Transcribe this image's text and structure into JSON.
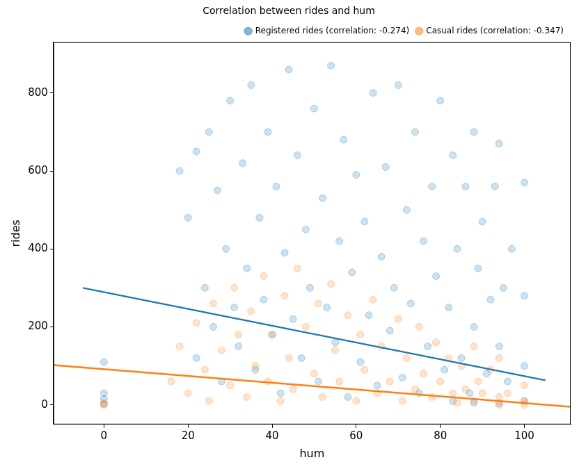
{
  "chart_data": {
    "type": "scatter",
    "title": "Correlation between rides and hum",
    "x_label": "hum",
    "y_label": "rides",
    "xlim": [
      -12,
      111
    ],
    "ylim": [
      -50,
      930
    ],
    "xticks": [
      0,
      20,
      40,
      60,
      80,
      100
    ],
    "yticks": [
      0,
      200,
      400,
      600,
      800
    ],
    "grid": false,
    "legend": "upper right",
    "series": [
      {
        "name": "Registered rides (correlation: -0.274)",
        "color": "#1f77b4",
        "marker": "circle",
        "x": [
          0,
          0,
          0,
          0,
          18,
          20,
          22,
          22,
          24,
          25,
          26,
          27,
          28,
          29,
          30,
          31,
          32,
          33,
          34,
          35,
          36,
          37,
          38,
          39,
          40,
          41,
          42,
          43,
          44,
          45,
          46,
          47,
          48,
          49,
          50,
          51,
          52,
          53,
          54,
          55,
          56,
          57,
          58,
          59,
          60,
          61,
          62,
          63,
          64,
          65,
          66,
          67,
          68,
          69,
          70,
          71,
          72,
          73,
          74,
          75,
          76,
          77,
          78,
          79,
          80,
          81,
          82,
          83,
          83,
          84,
          85,
          86,
          87,
          88,
          88,
          88,
          89,
          90,
          91,
          92,
          93,
          94,
          94,
          94,
          95,
          96,
          97,
          100,
          100,
          100,
          100
        ],
        "values": [
          2,
          15,
          30,
          110,
          600,
          480,
          650,
          120,
          300,
          700,
          200,
          550,
          60,
          400,
          780,
          250,
          150,
          620,
          350,
          820,
          90,
          480,
          270,
          700,
          180,
          560,
          30,
          390,
          860,
          220,
          640,
          120,
          450,
          300,
          760,
          60,
          530,
          250,
          870,
          160,
          420,
          680,
          20,
          340,
          590,
          110,
          470,
          230,
          800,
          50,
          380,
          610,
          190,
          300,
          820,
          70,
          500,
          260,
          700,
          30,
          420,
          150,
          560,
          330,
          780,
          90,
          250,
          640,
          10,
          400,
          120,
          560,
          30,
          700,
          200,
          5,
          350,
          470,
          80,
          270,
          560,
          670,
          150,
          5,
          300,
          60,
          400,
          570,
          280,
          100,
          10
        ],
        "fit": {
          "x": [
            -5,
            105
          ],
          "values": [
            300,
            63
          ]
        }
      },
      {
        "name": "Casual rides (correlation: -0.347)",
        "color": "#ff7f0e",
        "marker": "circle",
        "x": [
          0,
          0,
          16,
          18,
          20,
          22,
          24,
          25,
          26,
          28,
          30,
          31,
          32,
          34,
          35,
          36,
          38,
          39,
          40,
          42,
          43,
          44,
          45,
          46,
          48,
          50,
          51,
          52,
          54,
          55,
          56,
          58,
          60,
          61,
          62,
          64,
          65,
          66,
          68,
          70,
          71,
          72,
          74,
          75,
          76,
          78,
          79,
          80,
          82,
          83,
          84,
          85,
          86,
          88,
          88,
          89,
          90,
          92,
          94,
          94,
          94,
          96,
          100,
          100,
          100
        ],
        "values": [
          0,
          5,
          60,
          150,
          30,
          210,
          90,
          10,
          260,
          140,
          50,
          300,
          180,
          20,
          240,
          100,
          330,
          60,
          180,
          10,
          280,
          120,
          40,
          350,
          200,
          80,
          260,
          20,
          310,
          140,
          60,
          230,
          10,
          180,
          90,
          270,
          30,
          150,
          60,
          220,
          10,
          120,
          40,
          200,
          80,
          20,
          160,
          60,
          120,
          30,
          5,
          100,
          40,
          150,
          10,
          60,
          30,
          90,
          120,
          20,
          0,
          30,
          50,
          10,
          0
        ],
        "fit": {
          "x": [
            -12,
            111
          ],
          "values": [
            102,
            -5
          ]
        }
      }
    ]
  }
}
